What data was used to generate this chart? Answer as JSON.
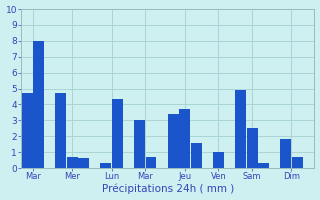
{
  "xlabel": "Précipitations 24h ( mm )",
  "ylim": [
    0,
    10
  ],
  "yticks": [
    0,
    1,
    2,
    3,
    4,
    5,
    6,
    7,
    8,
    9,
    10
  ],
  "background_color": "#cef0f0",
  "grid_color": "#aad4d4",
  "bar_color": "#1a55cc",
  "days": [
    "Mar",
    "Mer",
    "Lun",
    "Mar",
    "Jeu",
    "Ven",
    "Sam",
    "Dim"
  ],
  "groups": [
    [
      4.7,
      8.0
    ],
    [
      4.7,
      0.7,
      0.6
    ],
    [
      0.3,
      4.35
    ],
    [
      3.0,
      0.7
    ],
    [
      3.4,
      3.7,
      1.6
    ],
    [
      1.0
    ],
    [
      4.9,
      2.5,
      0.3
    ],
    [
      1.8,
      0.7
    ]
  ]
}
